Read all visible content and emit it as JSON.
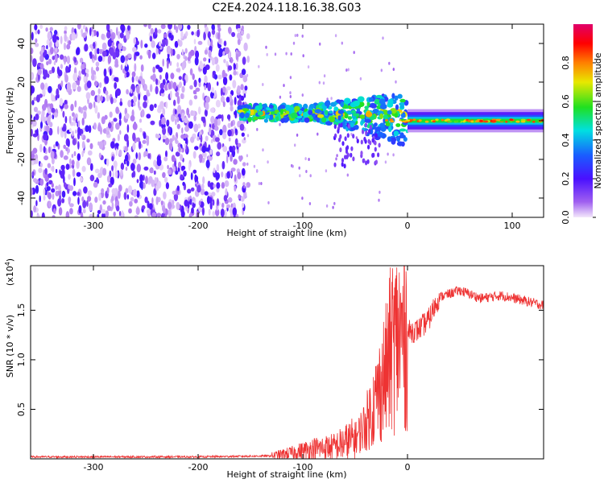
{
  "title": "C2E4.2024.118.16.38.G03",
  "chart_data": [
    {
      "type": "heatmap",
      "xlabel": "Height of straight line (km)",
      "ylabel": "Frequency (Hz)",
      "xlim": [
        -360,
        130
      ],
      "ylim": [
        -50,
        50
      ],
      "x_ticks": [
        -300,
        -200,
        -100,
        0,
        100
      ],
      "y_ticks": [
        -40,
        -20,
        0,
        20,
        40
      ],
      "x_tick_labels": [
        "-300",
        "-200",
        "-100",
        "0",
        "100"
      ],
      "y_tick_labels": [
        "-40",
        "-20",
        "0",
        "20",
        "40"
      ],
      "colorbar": {
        "label": "Normalized spectral amplitude",
        "range": [
          0.0,
          1.0
        ],
        "ticks": [
          0.0,
          0.2,
          0.4,
          0.6,
          0.8
        ],
        "tick_labels": [
          "0.0",
          "0.2",
          "0.4",
          "0.6",
          "0.8"
        ],
        "colors": [
          "#f3e8fb",
          "#7a00e6",
          "#1a3cff",
          "#00e0e0",
          "#20e020",
          "#e8e800",
          "#ff8000",
          "#ff0000",
          "#e0006a"
        ]
      },
      "regions": [
        {
          "x_range": [
            -360,
            -160
          ],
          "description_of_values": "noise",
          "amplitude_range": [
            0.0,
            0.15
          ]
        },
        {
          "x_range": [
            -160,
            0
          ],
          "center_freq_hz": 4,
          "band_halfwidth_hz": 4,
          "amplitude_range": [
            0.2,
            0.9
          ]
        },
        {
          "x_range": [
            0,
            130
          ],
          "center_freq_hz": 0,
          "band_halfwidth_hz": 3,
          "amplitude_range": [
            0.3,
            0.95
          ]
        }
      ]
    },
    {
      "type": "line",
      "xlabel": "Height of straight line (km)",
      "ylabel": "SNR (10 * v/v)",
      "y_multiplier": "(x10",
      "y_multiplier_exp": "4",
      "xlim": [
        -360,
        130
      ],
      "ylim": [
        0,
        1.95
      ],
      "x_ticks": [
        -300,
        -200,
        -100,
        0
      ],
      "x_tick_labels": [
        "-300",
        "-200",
        "-100",
        "0"
      ],
      "y_ticks": [
        0.5,
        1.0,
        1.5
      ],
      "y_tick_labels": [
        "0.5",
        "1.0",
        "1.5"
      ],
      "series": [
        {
          "color": "#ee3333",
          "x": [
            -360,
            -300,
            -200,
            -130,
            -110,
            -90,
            -70,
            -50,
            -40,
            -30,
            -20,
            -15,
            -10,
            0,
            10,
            20,
            30,
            50,
            70,
            90,
            110,
            130
          ],
          "y": [
            0.02,
            0.02,
            0.02,
            0.03,
            0.06,
            0.1,
            0.12,
            0.2,
            0.35,
            0.6,
            0.9,
            1.15,
            1.2,
            1.28,
            1.3,
            1.4,
            1.63,
            1.7,
            1.62,
            1.65,
            1.6,
            1.55
          ]
        }
      ]
    }
  ]
}
